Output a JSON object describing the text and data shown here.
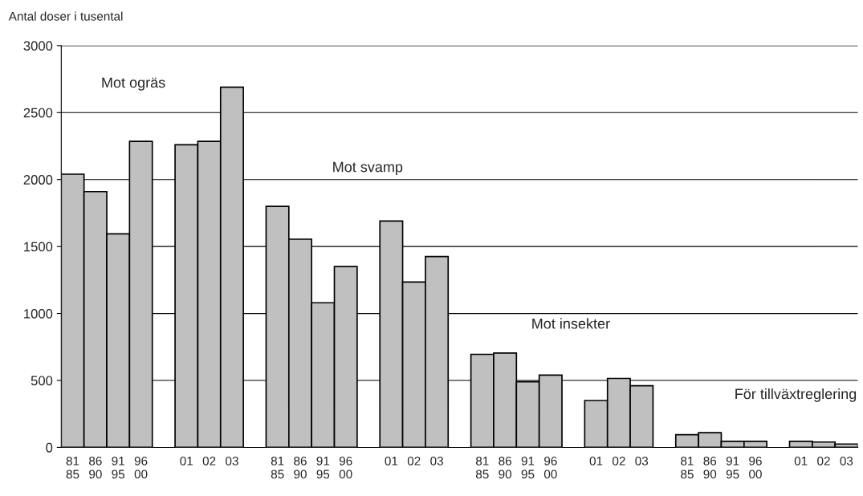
{
  "chart_data": {
    "type": "bar",
    "ylabel": "Antal doser i tusental",
    "categories": [
      "81\n85",
      "86\n90",
      "91\n95",
      "96\n00",
      null,
      "01",
      "02",
      "03",
      null,
      "81\n85",
      "86\n90",
      "91\n95",
      "96\n00",
      null,
      "01",
      "02",
      "03",
      null,
      "81\n85",
      "86\n90",
      "91\n95",
      "96\n00",
      null,
      "01",
      "02",
      "03",
      null,
      "81\n85",
      "86\n90",
      "91\n95",
      "96\n00",
      null,
      "01",
      "02",
      "03"
    ],
    "values": [
      2040,
      1910,
      1595,
      2285,
      null,
      2260,
      2285,
      2690,
      null,
      1800,
      1555,
      1080,
      1350,
      null,
      1690,
      1235,
      1425,
      null,
      695,
      705,
      490,
      540,
      null,
      350,
      515,
      460,
      null,
      95,
      110,
      45,
      45,
      null,
      45,
      40,
      25
    ],
    "color": "#c0c0c0",
    "ylim": [
      0,
      3000
    ],
    "yticks": [
      0,
      500,
      1000,
      1500,
      2000,
      2500,
      3000
    ],
    "grid": "y",
    "annotations": [
      "Mot ogräs",
      "Mot svamp",
      "Mot insekter",
      "För tillväxtreglering"
    ]
  }
}
